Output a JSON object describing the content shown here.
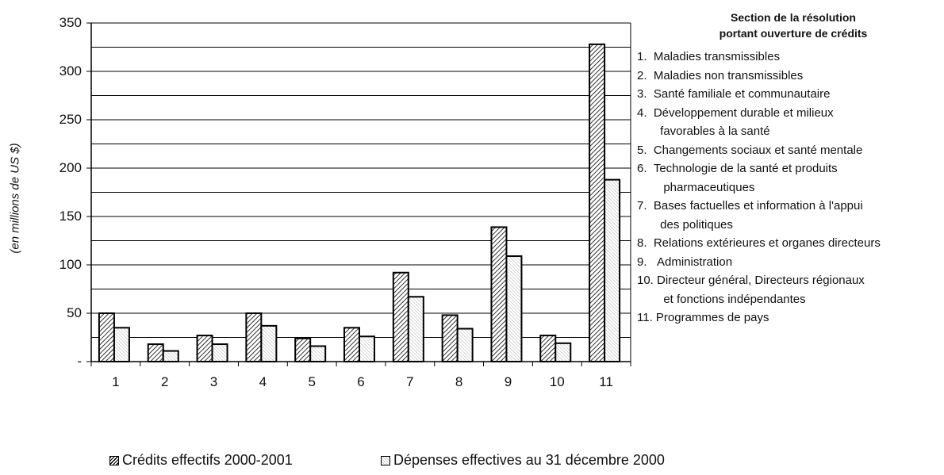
{
  "chart_data": {
    "type": "bar",
    "title": "",
    "xlabel": "",
    "ylabel": "(en millions de US $)",
    "ylim": [
      0,
      350
    ],
    "yticks": [
      "-",
      "50",
      "100",
      "150",
      "200",
      "250",
      "300",
      "350"
    ],
    "ytick_values": [
      0,
      50,
      100,
      150,
      200,
      250,
      300,
      350
    ],
    "categories": [
      "1",
      "2",
      "3",
      "4",
      "5",
      "6",
      "7",
      "8",
      "9",
      "10",
      "11"
    ],
    "series": [
      {
        "name": "Crédits effectifs 2000-2001",
        "values": [
          50,
          18,
          27,
          50,
          24,
          35,
          92,
          48,
          139,
          27,
          328
        ]
      },
      {
        "name": "Dépenses effectives au 31 décembre 2000",
        "values": [
          35,
          11,
          18,
          37,
          16,
          26,
          67,
          34,
          109,
          19,
          188
        ]
      }
    ],
    "grid": true,
    "legend_position": "bottom"
  },
  "side_panel": {
    "title_line1": "Section de la résolution",
    "title_line2": "portant ouverture de crédits",
    "items": [
      "1.  Maladies transmissibles",
      "2.  Maladies non transmissibles",
      "3.  Santé familiale et communautaire",
      "4.  Développement durable et milieux",
      "       favorables à la santé",
      "5.  Changements sociaux et santé mentale",
      "6.  Technologie de la santé et produits",
      "        pharmaceutiques",
      "7.  Bases factuelles et information à l'appui",
      "       des politiques",
      "8.  Relations extérieures et organes directeurs",
      "9.   Administration",
      "10. Directeur général, Directeurs régionaux",
      "        et fonctions indépendantes",
      "11. Programmes de pays"
    ]
  },
  "colors": {
    "axis": "#000000",
    "grid": "#000000",
    "bar_outline": "#000000",
    "hatch": "#000000",
    "dots": "#9a9a9a"
  }
}
